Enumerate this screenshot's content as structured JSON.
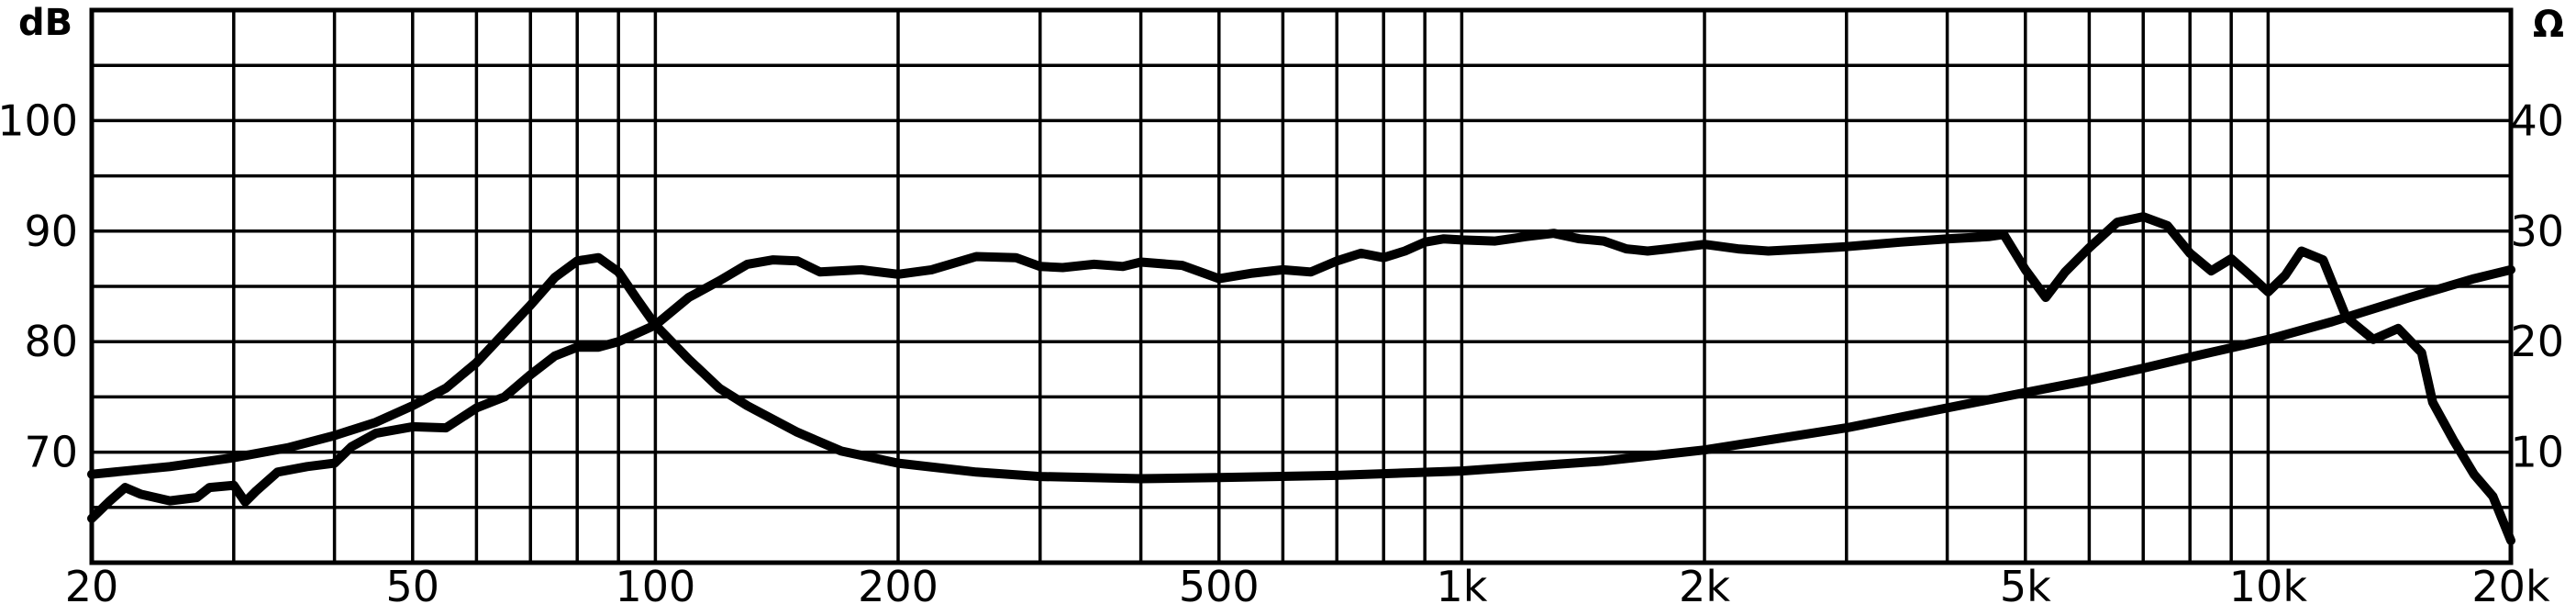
{
  "chart_data": {
    "type": "line",
    "xscale": "log",
    "grid": true,
    "xlim": [
      20,
      20000
    ],
    "ylim": [
      60,
      110
    ],
    "y2lim": [
      0,
      50
    ],
    "ylabel": "dB",
    "y2label": "Ω",
    "x_ticks": [
      {
        "value": 20,
        "label": "20"
      },
      {
        "value": 50,
        "label": "50"
      },
      {
        "value": 100,
        "label": "100"
      },
      {
        "value": 200,
        "label": "200"
      },
      {
        "value": 500,
        "label": "500"
      },
      {
        "value": 1000,
        "label": "1k"
      },
      {
        "value": 2000,
        "label": "2k"
      },
      {
        "value": 5000,
        "label": "5k"
      },
      {
        "value": 10000,
        "label": "10k"
      },
      {
        "value": 20000,
        "label": "20k"
      }
    ],
    "y_ticks": [
      {
        "value": 70,
        "label": "70"
      },
      {
        "value": 80,
        "label": "80"
      },
      {
        "value": 90,
        "label": "90"
      },
      {
        "value": 100,
        "label": "100"
      }
    ],
    "y2_ticks": [
      {
        "value": 10,
        "label": "10"
      },
      {
        "value": 20,
        "label": "20"
      },
      {
        "value": 30,
        "label": "30"
      },
      {
        "value": 40,
        "label": "40"
      }
    ],
    "series": [
      {
        "axis": "left",
        "points": [
          [
            20,
            64
          ],
          [
            21,
            65.5
          ],
          [
            22,
            66.8
          ],
          [
            23,
            66.2
          ],
          [
            25,
            65.6
          ],
          [
            27,
            65.9
          ],
          [
            28,
            66.8
          ],
          [
            30,
            67
          ],
          [
            31,
            65.5
          ],
          [
            32,
            66.5
          ],
          [
            34,
            68.2
          ],
          [
            37,
            68.7
          ],
          [
            40,
            69
          ],
          [
            42,
            70.5
          ],
          [
            45,
            71.7
          ],
          [
            50,
            72.3
          ],
          [
            55,
            72.2
          ],
          [
            60,
            74
          ],
          [
            65,
            75
          ],
          [
            70,
            77
          ],
          [
            75,
            78.7
          ],
          [
            80,
            79.5
          ],
          [
            85,
            79.5
          ],
          [
            90,
            80
          ],
          [
            100,
            81.5
          ],
          [
            110,
            84
          ],
          [
            120,
            85.5
          ],
          [
            130,
            87
          ],
          [
            140,
            87.4
          ],
          [
            150,
            87.3
          ],
          [
            160,
            86.3
          ],
          [
            180,
            86.5
          ],
          [
            200,
            86.1
          ],
          [
            220,
            86.5
          ],
          [
            250,
            87.7
          ],
          [
            280,
            87.6
          ],
          [
            300,
            86.8
          ],
          [
            320,
            86.7
          ],
          [
            350,
            87
          ],
          [
            380,
            86.8
          ],
          [
            400,
            87.2
          ],
          [
            450,
            86.9
          ],
          [
            500,
            85.7
          ],
          [
            550,
            86.2
          ],
          [
            600,
            86.5
          ],
          [
            650,
            86.3
          ],
          [
            700,
            87.3
          ],
          [
            750,
            88
          ],
          [
            800,
            87.6
          ],
          [
            850,
            88.2
          ],
          [
            900,
            89
          ],
          [
            950,
            89.3
          ],
          [
            1000,
            89.2
          ],
          [
            1100,
            89.1
          ],
          [
            1200,
            89.5
          ],
          [
            1300,
            89.8
          ],
          [
            1400,
            89.3
          ],
          [
            1500,
            89.1
          ],
          [
            1600,
            88.4
          ],
          [
            1700,
            88.2
          ],
          [
            1800,
            88.4
          ],
          [
            2000,
            88.8
          ],
          [
            2200,
            88.4
          ],
          [
            2400,
            88.2
          ],
          [
            2700,
            88.4
          ],
          [
            3000,
            88.6
          ],
          [
            3500,
            89
          ],
          [
            4000,
            89.3
          ],
          [
            4500,
            89.5
          ],
          [
            4700,
            89.7
          ],
          [
            5000,
            86.5
          ],
          [
            5300,
            84
          ],
          [
            5600,
            86.3
          ],
          [
            6000,
            88.5
          ],
          [
            6500,
            90.8
          ],
          [
            7000,
            91.3
          ],
          [
            7500,
            90.5
          ],
          [
            8000,
            88
          ],
          [
            8500,
            86.4
          ],
          [
            9000,
            87.5
          ],
          [
            9500,
            86
          ],
          [
            10000,
            84.5
          ],
          [
            10500,
            86
          ],
          [
            11000,
            88.2
          ],
          [
            11700,
            87.4
          ],
          [
            12500,
            82.2
          ],
          [
            13500,
            80.2
          ],
          [
            14500,
            81.2
          ],
          [
            15500,
            79
          ],
          [
            16000,
            74.5
          ],
          [
            17000,
            71
          ],
          [
            18000,
            68
          ],
          [
            19000,
            66
          ],
          [
            20000,
            62
          ]
        ]
      },
      {
        "axis": "right",
        "points": [
          [
            20,
            8
          ],
          [
            25,
            8.7
          ],
          [
            30,
            9.5
          ],
          [
            35,
            10.4
          ],
          [
            40,
            11.5
          ],
          [
            45,
            12.7
          ],
          [
            50,
            14.2
          ],
          [
            55,
            15.8
          ],
          [
            60,
            18.1
          ],
          [
            65,
            20.8
          ],
          [
            70,
            23.3
          ],
          [
            75,
            25.8
          ],
          [
            80,
            27.3
          ],
          [
            85,
            27.6
          ],
          [
            90,
            26.3
          ],
          [
            95,
            23.8
          ],
          [
            100,
            21.5
          ],
          [
            110,
            18.4
          ],
          [
            120,
            15.8
          ],
          [
            130,
            14.2
          ],
          [
            150,
            11.8
          ],
          [
            170,
            10.1
          ],
          [
            200,
            9
          ],
          [
            250,
            8.2
          ],
          [
            300,
            7.8
          ],
          [
            400,
            7.6
          ],
          [
            500,
            7.7
          ],
          [
            700,
            7.9
          ],
          [
            1000,
            8.3
          ],
          [
            1500,
            9.2
          ],
          [
            2000,
            10.2
          ],
          [
            3000,
            12.2
          ],
          [
            4000,
            14
          ],
          [
            5000,
            15.4
          ],
          [
            6000,
            16.5
          ],
          [
            7000,
            17.6
          ],
          [
            8000,
            18.6
          ],
          [
            10000,
            20.2
          ],
          [
            12000,
            21.8
          ],
          [
            15000,
            24
          ],
          [
            18000,
            25.7
          ],
          [
            20000,
            26.5
          ]
        ]
      }
    ]
  }
}
